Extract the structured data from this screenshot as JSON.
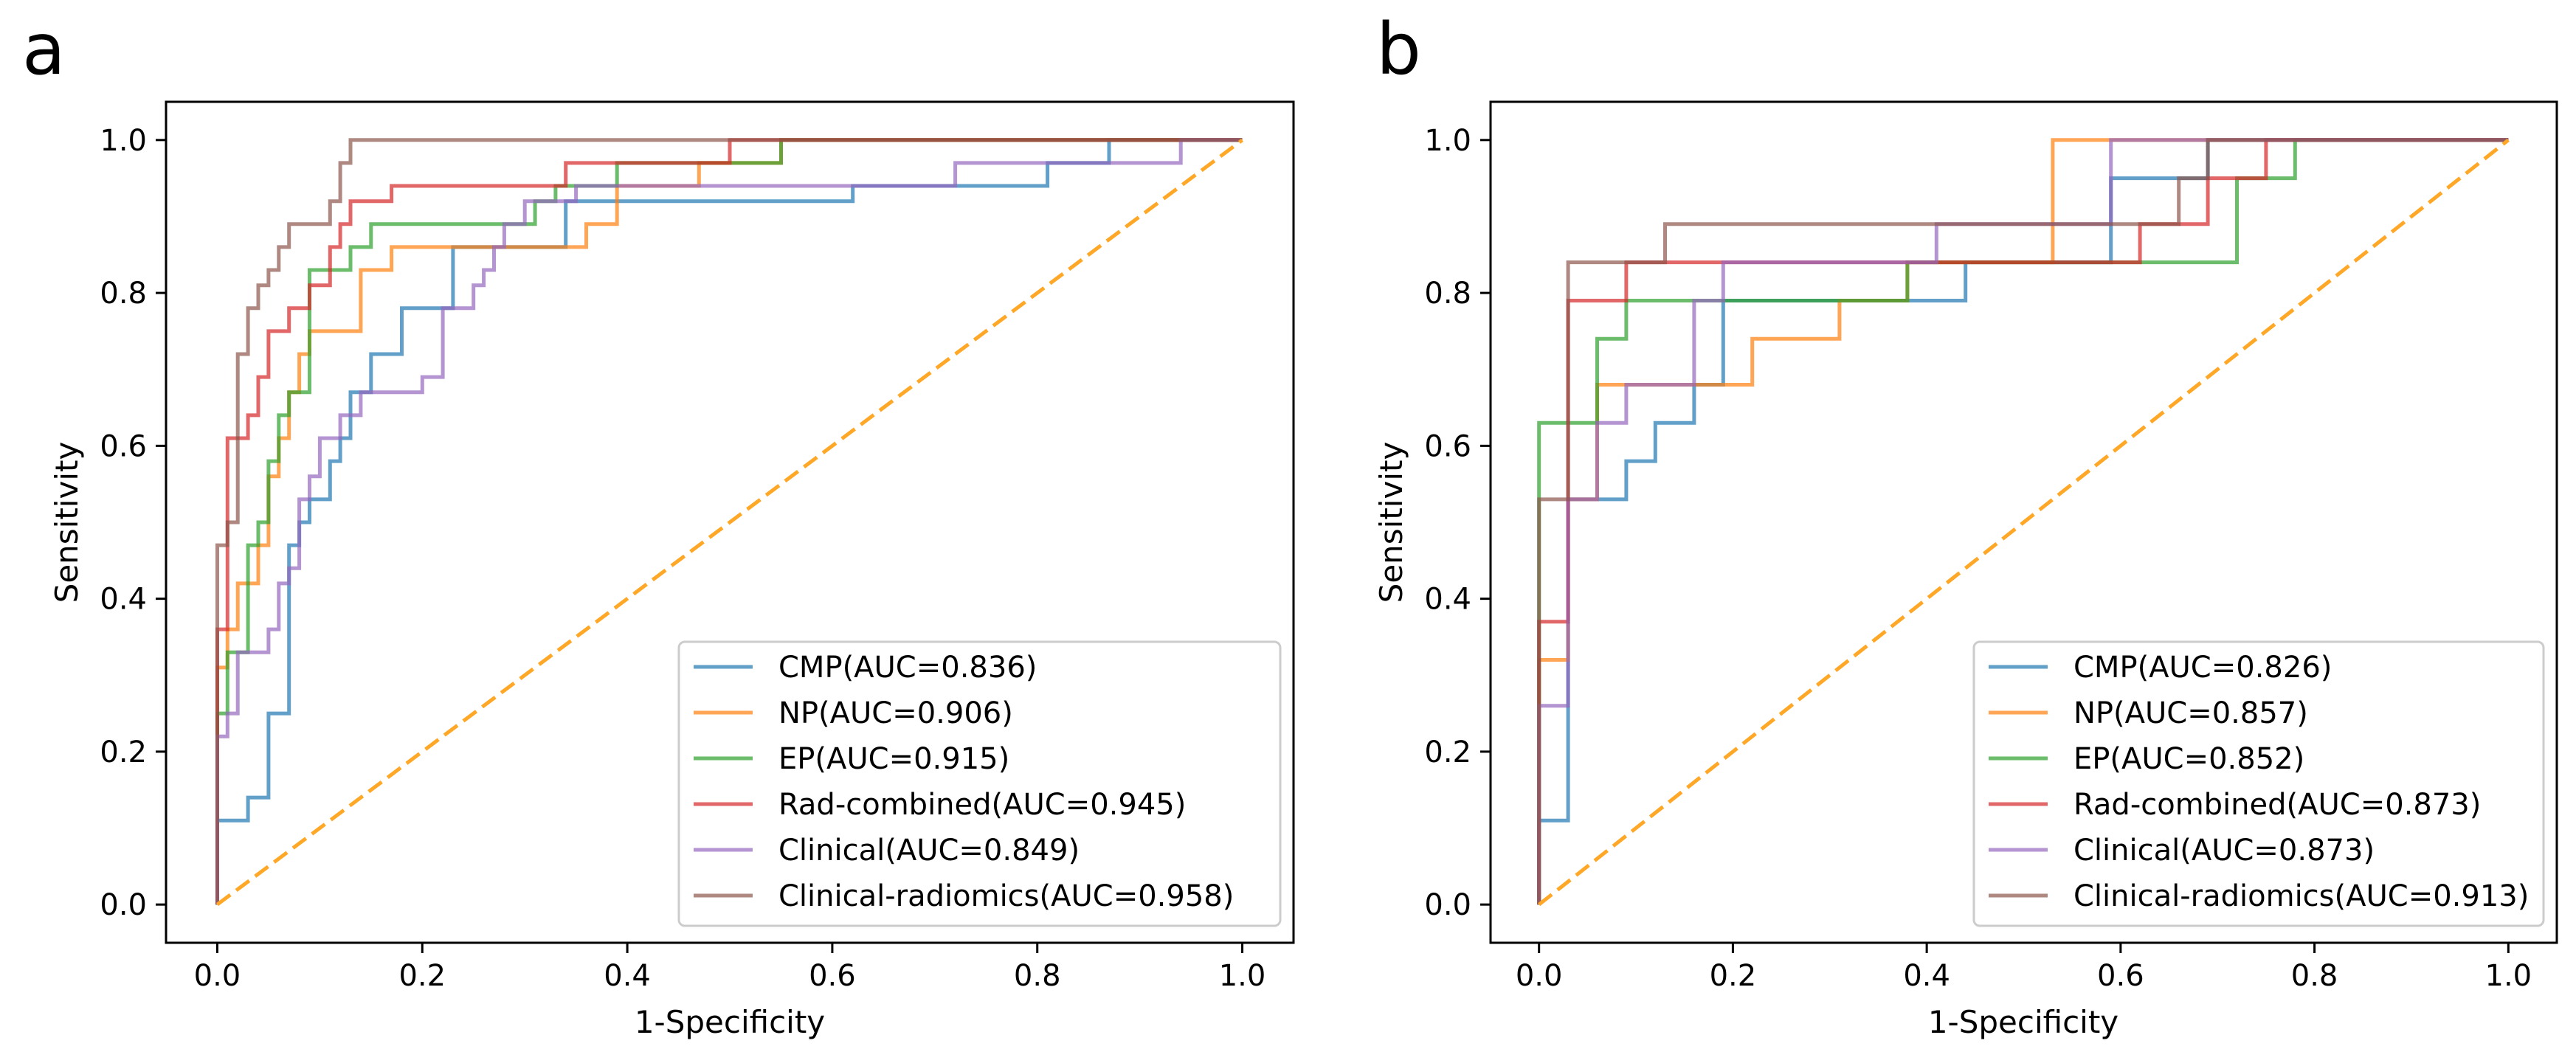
{
  "chart_data": [
    {
      "type": "line",
      "panel_label": "a",
      "xlabel": "1-Specificity",
      "ylabel": "Sensitivity",
      "xlim": [
        -0.05,
        1.05
      ],
      "ylim": [
        -0.05,
        1.05
      ],
      "xticks": [
        "0.0",
        "0.2",
        "0.4",
        "0.6",
        "0.8",
        "1.0"
      ],
      "yticks": [
        "0.0",
        "0.2",
        "0.4",
        "0.6",
        "0.8",
        "1.0"
      ],
      "legend_position": "lower-right",
      "reference_line": {
        "x": [
          0,
          1
        ],
        "y": [
          0,
          1
        ],
        "color": "#FFA726",
        "style": "dashed"
      },
      "series": [
        {
          "name": "CMP(AUC=0.836)",
          "color": "#1f77b4",
          "x": [
            0,
            0,
            0.03,
            0.03,
            0.05,
            0.05,
            0.07,
            0.07,
            0.08,
            0.08,
            0.09,
            0.09,
            0.11,
            0.11,
            0.12,
            0.12,
            0.13,
            0.13,
            0.15,
            0.15,
            0.18,
            0.18,
            0.23,
            0.23,
            0.29,
            0.29,
            0.34,
            0.34,
            0.62,
            0.62,
            0.81,
            0.81,
            0.87,
            0.87,
            1.0
          ],
          "y": [
            0,
            0.11,
            0.11,
            0.14,
            0.14,
            0.25,
            0.25,
            0.47,
            0.47,
            0.5,
            0.5,
            0.53,
            0.53,
            0.58,
            0.58,
            0.61,
            0.61,
            0.67,
            0.67,
            0.72,
            0.72,
            0.78,
            0.78,
            0.86,
            0.86,
            0.86,
            0.86,
            0.92,
            0.92,
            0.94,
            0.94,
            0.97,
            0.97,
            1.0,
            1.0
          ]
        },
        {
          "name": "NP(AUC=0.906)",
          "color": "#ff7f0e",
          "x": [
            0,
            0,
            0.01,
            0.01,
            0.02,
            0.02,
            0.04,
            0.04,
            0.05,
            0.05,
            0.06,
            0.06,
            0.07,
            0.07,
            0.08,
            0.08,
            0.09,
            0.09,
            0.14,
            0.14,
            0.17,
            0.17,
            0.21,
            0.21,
            0.36,
            0.36,
            0.39,
            0.39,
            0.47,
            0.47,
            0.55,
            0.55,
            1.0
          ],
          "y": [
            0,
            0.31,
            0.31,
            0.36,
            0.36,
            0.42,
            0.42,
            0.47,
            0.47,
            0.56,
            0.56,
            0.61,
            0.61,
            0.67,
            0.67,
            0.72,
            0.72,
            0.75,
            0.75,
            0.83,
            0.83,
            0.86,
            0.86,
            0.86,
            0.86,
            0.89,
            0.89,
            0.94,
            0.94,
            0.97,
            0.97,
            1.0,
            1.0
          ]
        },
        {
          "name": "EP(AUC=0.915)",
          "color": "#2ca02c",
          "x": [
            0,
            0,
            0.01,
            0.01,
            0.03,
            0.03,
            0.04,
            0.04,
            0.05,
            0.05,
            0.06,
            0.06,
            0.07,
            0.07,
            0.09,
            0.09,
            0.11,
            0.11,
            0.13,
            0.13,
            0.15,
            0.15,
            0.31,
            0.31,
            0.33,
            0.33,
            0.39,
            0.39,
            0.55,
            0.55,
            1.0
          ],
          "y": [
            0,
            0.25,
            0.25,
            0.33,
            0.33,
            0.47,
            0.47,
            0.5,
            0.5,
            0.58,
            0.58,
            0.64,
            0.64,
            0.67,
            0.67,
            0.83,
            0.83,
            0.83,
            0.83,
            0.86,
            0.86,
            0.89,
            0.89,
            0.92,
            0.92,
            0.94,
            0.94,
            0.97,
            0.97,
            1.0,
            1.0
          ]
        },
        {
          "name": "Rad-combined(AUC=0.945)",
          "color": "#d62728",
          "x": [
            0,
            0,
            0.01,
            0.01,
            0.03,
            0.03,
            0.04,
            0.04,
            0.05,
            0.05,
            0.07,
            0.07,
            0.09,
            0.09,
            0.11,
            0.11,
            0.12,
            0.12,
            0.13,
            0.13,
            0.15,
            0.15,
            0.17,
            0.17,
            0.34,
            0.34,
            0.5,
            0.5,
            1.0
          ],
          "y": [
            0,
            0.36,
            0.36,
            0.61,
            0.61,
            0.64,
            0.64,
            0.69,
            0.69,
            0.75,
            0.75,
            0.78,
            0.78,
            0.81,
            0.81,
            0.86,
            0.86,
            0.89,
            0.89,
            0.92,
            0.92,
            0.92,
            0.92,
            0.94,
            0.94,
            0.97,
            0.97,
            1.0,
            1.0
          ]
        },
        {
          "name": "Clinical(AUC=0.849)",
          "color": "#9467bd",
          "x": [
            0,
            0,
            0.01,
            0.01,
            0.02,
            0.02,
            0.05,
            0.05,
            0.06,
            0.06,
            0.07,
            0.07,
            0.08,
            0.08,
            0.09,
            0.09,
            0.1,
            0.1,
            0.12,
            0.12,
            0.14,
            0.14,
            0.2,
            0.2,
            0.22,
            0.22,
            0.25,
            0.25,
            0.26,
            0.26,
            0.27,
            0.27,
            0.28,
            0.28,
            0.3,
            0.3,
            0.35,
            0.35,
            0.72,
            0.72,
            0.94,
            0.94,
            1.0
          ],
          "y": [
            0,
            0.22,
            0.22,
            0.25,
            0.25,
            0.33,
            0.33,
            0.36,
            0.36,
            0.42,
            0.42,
            0.44,
            0.44,
            0.53,
            0.53,
            0.56,
            0.56,
            0.61,
            0.61,
            0.64,
            0.64,
            0.67,
            0.67,
            0.69,
            0.69,
            0.78,
            0.78,
            0.81,
            0.81,
            0.83,
            0.83,
            0.86,
            0.86,
            0.89,
            0.89,
            0.92,
            0.92,
            0.94,
            0.94,
            0.97,
            0.97,
            1.0,
            1.0
          ]
        },
        {
          "name": "Clinical-radiomics(AUC=0.958)",
          "color": "#8c564b",
          "x": [
            0,
            0,
            0.01,
            0.01,
            0.02,
            0.02,
            0.03,
            0.03,
            0.04,
            0.04,
            0.05,
            0.05,
            0.06,
            0.06,
            0.07,
            0.07,
            0.11,
            0.11,
            0.12,
            0.12,
            0.13,
            0.13,
            1.0
          ],
          "y": [
            0,
            0.47,
            0.47,
            0.5,
            0.5,
            0.72,
            0.72,
            0.78,
            0.78,
            0.81,
            0.81,
            0.83,
            0.83,
            0.86,
            0.86,
            0.89,
            0.89,
            0.92,
            0.92,
            0.97,
            0.97,
            1.0,
            1.0
          ]
        }
      ]
    },
    {
      "type": "line",
      "panel_label": "b",
      "xlabel": "1-Specificity",
      "ylabel": "Sensitivity",
      "xlim": [
        -0.05,
        1.05
      ],
      "ylim": [
        -0.05,
        1.05
      ],
      "xticks": [
        "0.0",
        "0.2",
        "0.4",
        "0.6",
        "0.8",
        "1.0"
      ],
      "yticks": [
        "0.0",
        "0.2",
        "0.4",
        "0.6",
        "0.8",
        "1.0"
      ],
      "legend_position": "lower-right",
      "reference_line": {
        "x": [
          0,
          1
        ],
        "y": [
          0,
          1
        ],
        "color": "#FFA726",
        "style": "dashed"
      },
      "series": [
        {
          "name": "CMP(AUC=0.826)",
          "color": "#1f77b4",
          "x": [
            0,
            0,
            0.03,
            0.03,
            0.09,
            0.09,
            0.12,
            0.12,
            0.16,
            0.16,
            0.19,
            0.19,
            0.44,
            0.44,
            0.59,
            0.59,
            0.66,
            0.66,
            0.69,
            0.69,
            1.0
          ],
          "y": [
            0,
            0.11,
            0.11,
            0.53,
            0.53,
            0.58,
            0.58,
            0.63,
            0.63,
            0.68,
            0.68,
            0.79,
            0.79,
            0.84,
            0.84,
            0.95,
            0.95,
            0.95,
            0.95,
            1.0,
            1.0
          ]
        },
        {
          "name": "NP(AUC=0.857)",
          "color": "#ff7f0e",
          "x": [
            0,
            0,
            0.03,
            0.03,
            0.06,
            0.06,
            0.16,
            0.16,
            0.22,
            0.22,
            0.31,
            0.31,
            0.38,
            0.38,
            0.53,
            0.53,
            1.0
          ],
          "y": [
            0,
            0.32,
            0.32,
            0.53,
            0.53,
            0.68,
            0.68,
            0.68,
            0.68,
            0.74,
            0.74,
            0.79,
            0.79,
            0.84,
            0.84,
            1.0,
            1.0
          ]
        },
        {
          "name": "EP(AUC=0.852)",
          "color": "#2ca02c",
          "x": [
            0,
            0,
            0.06,
            0.06,
            0.09,
            0.09,
            0.38,
            0.38,
            0.62,
            0.62,
            0.72,
            0.72,
            0.78,
            0.78,
            1.0
          ],
          "y": [
            0,
            0.63,
            0.63,
            0.74,
            0.74,
            0.79,
            0.79,
            0.84,
            0.84,
            0.84,
            0.84,
            0.95,
            0.95,
            1.0,
            1.0
          ]
        },
        {
          "name": "Rad-combined(AUC=0.873)",
          "color": "#d62728",
          "x": [
            0,
            0,
            0.03,
            0.03,
            0.09,
            0.09,
            0.62,
            0.62,
            0.69,
            0.69,
            0.75,
            0.75,
            1.0
          ],
          "y": [
            0,
            0.37,
            0.37,
            0.79,
            0.79,
            0.84,
            0.84,
            0.89,
            0.89,
            0.95,
            0.95,
            1.0,
            1.0
          ]
        },
        {
          "name": "Clinical(AUC=0.873)",
          "color": "#9467bd",
          "x": [
            0,
            0,
            0.03,
            0.03,
            0.06,
            0.06,
            0.09,
            0.09,
            0.16,
            0.16,
            0.19,
            0.19,
            0.41,
            0.41,
            0.59,
            0.59,
            1.0
          ],
          "y": [
            0,
            0.26,
            0.26,
            0.53,
            0.53,
            0.63,
            0.63,
            0.68,
            0.68,
            0.79,
            0.79,
            0.84,
            0.84,
            0.89,
            0.89,
            1.0,
            1.0
          ]
        },
        {
          "name": "Clinical-radiomics(AUC=0.913)",
          "color": "#8c564b",
          "x": [
            0,
            0,
            0.03,
            0.03,
            0.13,
            0.13,
            0.41,
            0.41,
            0.66,
            0.66,
            0.69,
            0.69,
            1.0
          ],
          "y": [
            0,
            0.53,
            0.53,
            0.84,
            0.84,
            0.89,
            0.89,
            0.89,
            0.89,
            0.95,
            0.95,
            1.0,
            1.0
          ]
        }
      ]
    }
  ]
}
